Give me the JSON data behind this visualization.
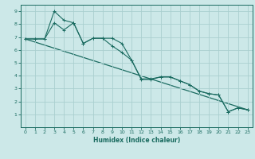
{
  "xlabel": "Humidex (Indice chaleur)",
  "bg_color": "#cce8e8",
  "grid_color": "#aacfcf",
  "line_color": "#1a6b60",
  "xlim": [
    -0.5,
    23.5
  ],
  "ylim": [
    0,
    9.5
  ],
  "xticks": [
    0,
    1,
    2,
    3,
    4,
    5,
    6,
    7,
    8,
    9,
    10,
    11,
    12,
    13,
    14,
    15,
    16,
    17,
    18,
    19,
    20,
    21,
    22,
    23
  ],
  "yticks": [
    1,
    2,
    3,
    4,
    5,
    6,
    7,
    8,
    9
  ],
  "line1_x": [
    0,
    1,
    2,
    3,
    4,
    5,
    5,
    6,
    7,
    8,
    9,
    10,
    11,
    12,
    13,
    14,
    15,
    16,
    17,
    18,
    19,
    20,
    21,
    22,
    23
  ],
  "line1_y": [
    6.85,
    6.85,
    6.85,
    9.0,
    8.3,
    8.1,
    8.1,
    6.5,
    6.9,
    6.9,
    6.9,
    6.5,
    5.2,
    3.7,
    3.7,
    3.9,
    3.9,
    3.6,
    3.3,
    2.8,
    2.6,
    2.5,
    1.2,
    1.5,
    1.35
  ],
  "line2_x": [
    0,
    1,
    2,
    3,
    4,
    5,
    6,
    7,
    8,
    9,
    10,
    11,
    12,
    13,
    14,
    15,
    16,
    17,
    18,
    19,
    20,
    21,
    22,
    23
  ],
  "line2_y": [
    6.85,
    6.85,
    6.85,
    8.1,
    7.55,
    8.1,
    6.5,
    6.9,
    6.9,
    6.3,
    5.8,
    5.2,
    3.75,
    3.75,
    3.9,
    3.9,
    3.6,
    3.3,
    2.8,
    2.6,
    2.5,
    1.2,
    1.5,
    1.35
  ],
  "line3_x": [
    0,
    23
  ],
  "line3_y": [
    6.85,
    1.35
  ]
}
